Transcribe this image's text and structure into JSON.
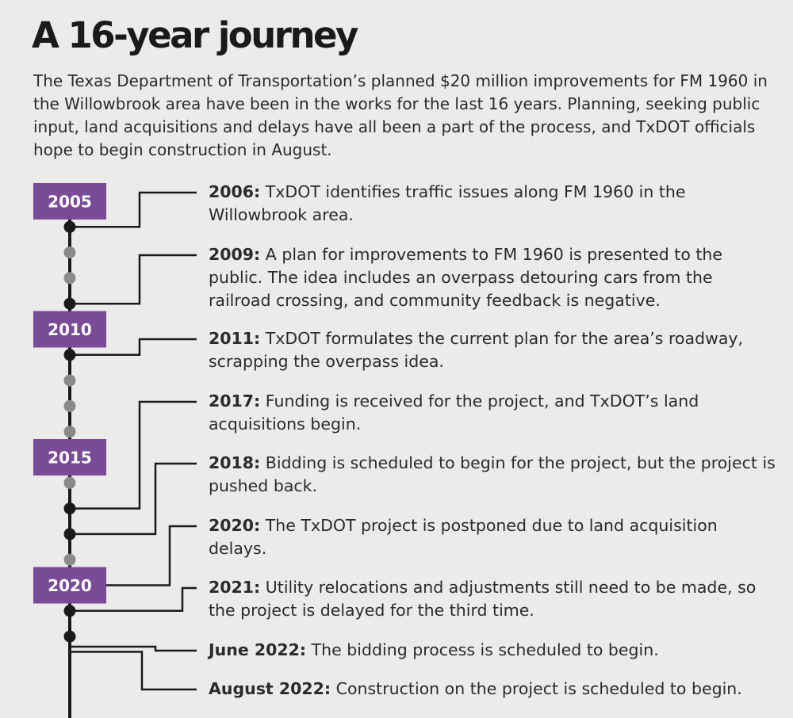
{
  "title": "A 16-year journey",
  "intro": "The Texas Department of Transportation’s planned $20 million improvements for FM 1960 in the Willowbrook area have been in the works for the last 16 years. Planning, seeking public input, land acquisitions and delays have all been a part of the process, and TxDOT officials hope to begin construction in August.",
  "colors": {
    "accent": "#7a4b96",
    "background": "#ebebeb",
    "line": "#1a1a1a",
    "minor_dot": "#8a8a8a"
  },
  "timeline": {
    "start_year": 2005,
    "end_year": 2022,
    "labels": [
      "2005",
      "2010",
      "2015",
      "2020"
    ],
    "events": [
      {
        "year": "2006:",
        "text": " TxDOT identifies traffic issues along FM 1960 in the Willowbrook area.",
        "date": 2006
      },
      {
        "year": "2009:",
        "text": " A plan for improvements to FM 1960 is presented to the public. The idea includes an overpass detouring cars from the railroad crossing, and community feedback is negative.",
        "date": 2009
      },
      {
        "year": "2011:",
        "text": " TxDOT formulates the current plan for the area’s roadway, scrapping the overpass idea.",
        "date": 2011
      },
      {
        "year": "2017:",
        "text": " Funding is received for the project, and TxDOT’s land acquisitions begin.",
        "date": 2017
      },
      {
        "year": "2018:",
        "text": " Bidding is scheduled to begin for the project, but the project is pushed back.",
        "date": 2018
      },
      {
        "year": "2020:",
        "text": " The TxDOT project is postponed due to land acquisition delays.",
        "date": 2020
      },
      {
        "year": "2021:",
        "text": " Utility relocations and adjustments still need to be made, so the project is delayed for the third time.",
        "date": 2021
      },
      {
        "year": "June 2022:",
        "text": " The bidding process is scheduled to begin.",
        "date": 2022.4
      },
      {
        "year": "August 2022:",
        "text": " Construction on the project is scheduled to begin.",
        "date": 2022.6
      }
    ]
  }
}
